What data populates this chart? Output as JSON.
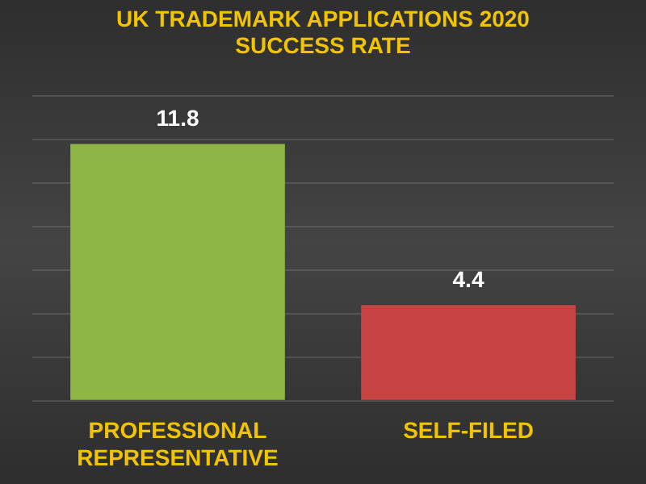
{
  "chart_data": {
    "type": "bar",
    "title": "UK TRADEMARK APPLICATIONS 2020 SUCCESS RATE",
    "categories": [
      "PROFESSIONAL REPRESENTATIVE",
      "SELF-FILED"
    ],
    "values": [
      11.8,
      4.4
    ],
    "colors": [
      "#8db645",
      "#c84444"
    ],
    "ylim": [
      0,
      14
    ],
    "yticks": [
      {
        "value": 0,
        "label": null
      },
      {
        "value": 2,
        "label": null
      },
      {
        "value": 4,
        "label": null
      },
      {
        "value": 6,
        "label": null
      },
      {
        "value": 8,
        "label": null
      },
      {
        "value": 10,
        "label": null
      },
      {
        "value": 12,
        "label": null
      },
      {
        "value": 14,
        "label": null
      }
    ],
    "tick_labels": "x",
    "grid": "y",
    "data_labels": true,
    "legend": false
  }
}
